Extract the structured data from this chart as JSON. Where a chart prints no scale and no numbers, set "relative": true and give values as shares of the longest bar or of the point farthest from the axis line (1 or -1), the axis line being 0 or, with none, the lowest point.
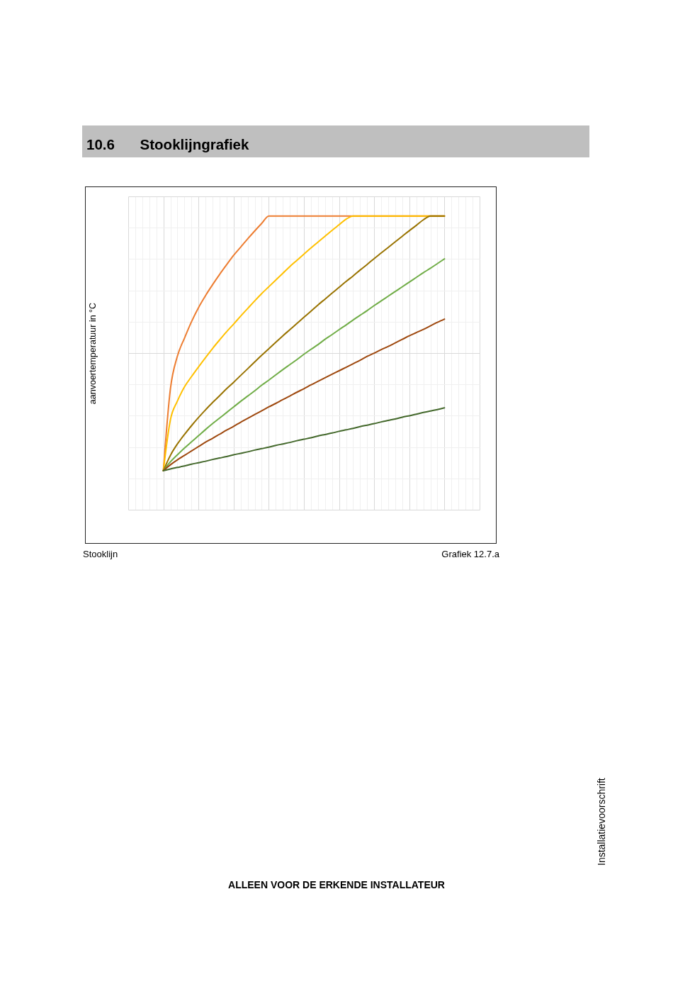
{
  "chart_data": {
    "type": "line",
    "title": "10.6 Stooklijngrafiek",
    "ylabel": "aanvoertemperatuur in °C",
    "annotations": [
      "Stooklijn",
      "Grafiek 12.7.a",
      "Installatievoorschrift",
      "ALLEEN VOOR DE ERKENDE INSTALLATEUR"
    ],
    "relative": true,
    "grid": true,
    "categories": [
      null,
      null,
      null,
      null,
      null,
      null,
      null,
      null,
      null,
      null,
      null,
      null,
      null,
      null,
      null,
      null,
      null,
      null,
      null,
      null,
      null,
      null,
      null,
      null,
      null,
      null,
      null,
      null,
      null,
      null,
      null,
      null,
      null,
      null,
      null,
      null,
      null,
      null,
      null,
      null,
      null,
      null,
      null,
      null,
      null,
      null,
      null,
      null,
      null,
      null,
      null
    ],
    "series": [
      {
        "color": "#ed7d31",
        "values": [
          null,
          null,
          null,
          null,
          null,
          0.133,
          0.411,
          0.523,
          0.584,
          0.64,
          0.688,
          0.729,
          0.766,
          0.801,
          0.834,
          0.866,
          0.894,
          0.922,
          0.949,
          0.975,
          1,
          1,
          1,
          1,
          1,
          1,
          1,
          1,
          1,
          1,
          1,
          1,
          1,
          1,
          1,
          1,
          1,
          1,
          1,
          1,
          1,
          1,
          1,
          1,
          1,
          1,
          null,
          null,
          null,
          null,
          null
        ]
      },
      {
        "color": "#ffc000",
        "values": [
          null,
          null,
          null,
          null,
          null,
          0.133,
          0.306,
          0.37,
          0.418,
          0.453,
          0.486,
          0.518,
          0.549,
          0.578,
          0.606,
          0.632,
          0.659,
          0.685,
          0.711,
          0.736,
          0.759,
          0.782,
          0.805,
          0.828,
          0.849,
          0.87,
          0.891,
          0.911,
          0.931,
          0.951,
          0.97,
          0.989,
          1,
          1,
          1,
          1,
          1,
          1,
          1,
          1,
          1,
          1,
          1,
          1,
          1,
          1,
          null,
          null,
          null,
          null,
          null
        ]
      },
      {
        "color": "#997300",
        "values": [
          null,
          null,
          null,
          null,
          null,
          0.133,
          0.185,
          0.224,
          0.256,
          0.286,
          0.314,
          0.34,
          0.365,
          0.388,
          0.412,
          0.434,
          0.457,
          0.48,
          0.503,
          0.526,
          0.548,
          0.57,
          0.592,
          0.613,
          0.634,
          0.655,
          0.676,
          0.697,
          0.717,
          0.737,
          0.757,
          0.777,
          0.796,
          0.816,
          0.835,
          0.855,
          0.874,
          0.893,
          0.912,
          0.931,
          0.95,
          0.968,
          0.987,
          1,
          1,
          1,
          null,
          null,
          null,
          null,
          null
        ]
      },
      {
        "color": "#70ad47",
        "values": [
          null,
          null,
          null,
          null,
          null,
          0.133,
          0.163,
          0.187,
          0.21,
          0.231,
          0.252,
          0.273,
          0.293,
          0.312,
          0.331,
          0.35,
          0.369,
          0.387,
          0.405,
          0.424,
          0.441,
          0.459,
          0.477,
          0.494,
          0.511,
          0.529,
          0.546,
          0.562,
          0.58,
          0.596,
          0.613,
          0.629,
          0.646,
          0.662,
          0.678,
          0.695,
          0.711,
          0.727,
          0.743,
          0.759,
          0.775,
          0.791,
          0.807,
          0.822,
          0.838,
          0.854,
          null,
          null,
          null,
          null,
          null
        ]
      },
      {
        "color": "#9e480e",
        "values": [
          null,
          null,
          null,
          null,
          null,
          0.133,
          0.153,
          0.17,
          0.185,
          0.2,
          0.215,
          0.23,
          0.243,
          0.257,
          0.271,
          0.284,
          0.298,
          0.311,
          0.324,
          0.337,
          0.35,
          0.362,
          0.375,
          0.387,
          0.4,
          0.412,
          0.425,
          0.437,
          0.449,
          0.461,
          0.473,
          0.485,
          0.497,
          0.509,
          0.522,
          0.533,
          0.545,
          0.556,
          0.568,
          0.58,
          0.592,
          0.603,
          0.614,
          0.626,
          0.638,
          0.649,
          null,
          null,
          null,
          null,
          null
        ]
      },
      {
        "color": "#43682b",
        "values": [
          null,
          null,
          null,
          null,
          null,
          0.133,
          0.139,
          0.144,
          0.149,
          0.155,
          0.16,
          0.165,
          0.171,
          0.176,
          0.181,
          0.187,
          0.192,
          0.197,
          0.203,
          0.208,
          0.213,
          0.219,
          0.224,
          0.229,
          0.235,
          0.24,
          0.245,
          0.251,
          0.256,
          0.261,
          0.267,
          0.272,
          0.277,
          0.283,
          0.288,
          0.293,
          0.299,
          0.304,
          0.309,
          0.315,
          0.32,
          0.325,
          0.331,
          0.336,
          0.341,
          0.347,
          null,
          null,
          null,
          null,
          null
        ]
      }
    ]
  }
}
